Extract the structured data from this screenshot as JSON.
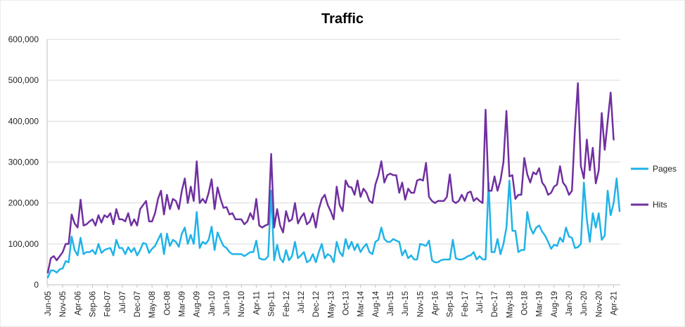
{
  "chart_data": {
    "type": "line",
    "title": "Traffic",
    "xlabel": "",
    "ylabel": "",
    "ylim": [
      0,
      600000
    ],
    "y_ticks": [
      "0",
      "100,000",
      "200,000",
      "300,000",
      "400,000",
      "500,000",
      "600,000"
    ],
    "x_tick_labels": [
      "Jun-05",
      "Nov-05",
      "Apr-06",
      "Sep-06",
      "Feb-07",
      "Jul-07",
      "Dec-07",
      "May-08",
      "Oct-08",
      "Mar-09",
      "Aug-09",
      "Jan-10",
      "Jun-10",
      "Nov-10",
      "Apr-11",
      "Sep-11",
      "Feb-12",
      "Jul-12",
      "Dec-12",
      "May-13",
      "Oct-13",
      "Mar-14",
      "Aug-14",
      "Jan-15",
      "Jun-15",
      "Nov-15",
      "Apr-16",
      "Sep-16",
      "Feb-17",
      "Jul-17",
      "Dec-17",
      "May-18",
      "Oct-18",
      "Mar-19",
      "Aug-19",
      "Jan-20",
      "Jun-20",
      "Nov-20",
      "Apr-21"
    ],
    "x_start": "Jun-05",
    "x_end": "Apr-21",
    "grid": "horizontal",
    "legend_position": "right",
    "series": [
      {
        "name": "Pages",
        "color": "#1fb3e8",
        "values": [
          18000,
          35000,
          35000,
          30000,
          38000,
          40000,
          58000,
          55000,
          118000,
          85000,
          72000,
          115000,
          75000,
          80000,
          80000,
          85000,
          75000,
          100000,
          78000,
          85000,
          88000,
          90000,
          72000,
          110000,
          90000,
          90000,
          75000,
          92000,
          80000,
          90000,
          72000,
          85000,
          102000,
          100000,
          78000,
          88000,
          95000,
          110000,
          125000,
          75000,
          125000,
          95000,
          110000,
          105000,
          93000,
          125000,
          140000,
          100000,
          122000,
          100000,
          178000,
          90000,
          105000,
          100000,
          110000,
          142000,
          85000,
          128000,
          110000,
          95000,
          90000,
          80000,
          75000,
          75000,
          75000,
          75000,
          70000,
          75000,
          80000,
          80000,
          108000,
          65000,
          62000,
          62000,
          70000,
          230000,
          60000,
          98000,
          65000,
          55000,
          85000,
          60000,
          70000,
          105000,
          65000,
          72000,
          80000,
          55000,
          60000,
          75000,
          55000,
          80000,
          100000,
          65000,
          75000,
          70000,
          55000,
          105000,
          80000,
          70000,
          112000,
          88000,
          105000,
          85000,
          100000,
          80000,
          92000,
          100000,
          80000,
          75000,
          105000,
          110000,
          140000,
          112000,
          105000,
          105000,
          112000,
          108000,
          105000,
          72000,
          85000,
          65000,
          72000,
          62000,
          62000,
          100000,
          98000,
          95000,
          108000,
          60000,
          55000,
          55000,
          60000,
          62000,
          62000,
          62000,
          110000,
          65000,
          62000,
          62000,
          65000,
          70000,
          72000,
          80000,
          62000,
          70000,
          62000,
          62000,
          250000,
          80000,
          80000,
          112000,
          75000,
          100000,
          140000,
          255000,
          132000,
          132000,
          80000,
          85000,
          85000,
          178000,
          140000,
          125000,
          140000,
          145000,
          130000,
          120000,
          105000,
          88000,
          98000,
          95000,
          115000,
          105000,
          140000,
          118000,
          115000,
          90000,
          92000,
          100000,
          250000,
          160000,
          105000,
          175000,
          140000,
          175000,
          110000,
          120000,
          230000,
          170000,
          200000,
          260000,
          180000
        ]
      },
      {
        "name": "Hits",
        "color": "#7030a0",
        "values": [
          30000,
          65000,
          70000,
          60000,
          70000,
          80000,
          100000,
          100000,
          172000,
          150000,
          140000,
          208000,
          145000,
          148000,
          155000,
          160000,
          145000,
          170000,
          152000,
          170000,
          165000,
          175000,
          148000,
          185000,
          160000,
          160000,
          155000,
          175000,
          145000,
          160000,
          145000,
          185000,
          195000,
          205000,
          155000,
          155000,
          175000,
          210000,
          230000,
          172000,
          220000,
          185000,
          210000,
          205000,
          185000,
          230000,
          260000,
          200000,
          240000,
          205000,
          302000,
          200000,
          210000,
          200000,
          225000,
          258000,
          185000,
          238000,
          210000,
          188000,
          190000,
          172000,
          175000,
          160000,
          160000,
          160000,
          148000,
          155000,
          175000,
          160000,
          210000,
          145000,
          140000,
          145000,
          148000,
          320000,
          140000,
          185000,
          145000,
          128000,
          180000,
          155000,
          160000,
          200000,
          150000,
          165000,
          175000,
          148000,
          155000,
          175000,
          140000,
          185000,
          210000,
          220000,
          195000,
          180000,
          160000,
          240000,
          195000,
          180000,
          255000,
          240000,
          238000,
          220000,
          255000,
          215000,
          235000,
          225000,
          205000,
          200000,
          245000,
          268000,
          302000,
          250000,
          268000,
          272000,
          268000,
          268000,
          225000,
          250000,
          208000,
          235000,
          225000,
          225000,
          255000,
          258000,
          255000,
          298000,
          215000,
          205000,
          200000,
          205000,
          205000,
          205000,
          215000,
          270000,
          205000,
          200000,
          205000,
          220000,
          205000,
          225000,
          228000,
          205000,
          212000,
          205000,
          200000,
          428000,
          230000,
          230000,
          265000,
          230000,
          255000,
          300000,
          425000,
          265000,
          268000,
          210000,
          220000,
          220000,
          310000,
          270000,
          250000,
          275000,
          270000,
          285000,
          250000,
          240000,
          220000,
          225000,
          240000,
          245000,
          290000,
          250000,
          240000,
          220000,
          230000,
          380000,
          493000,
          290000,
          260000,
          355000,
          280000,
          335000,
          248000,
          280000,
          420000,
          330000,
          400000,
          470000,
          355000
        ]
      }
    ]
  }
}
